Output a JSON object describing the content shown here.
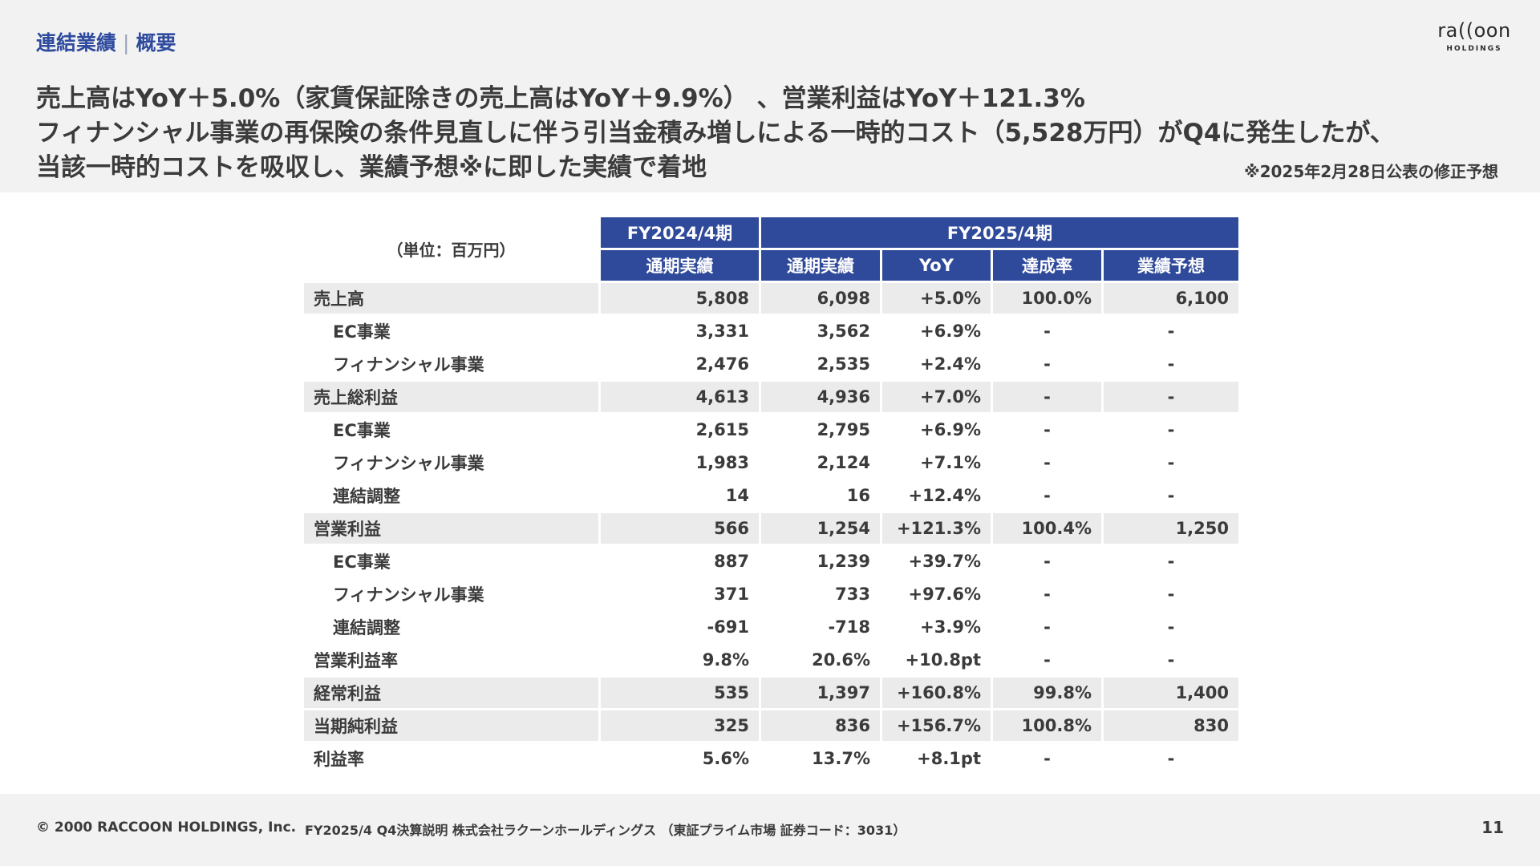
{
  "header": {
    "section": "連結業績",
    "subsection": "概要",
    "logo_word": "ra((oon",
    "logo_sub": "HOLDINGS",
    "headline_lines": [
      "売上高はYoY＋5.0%（家賃保証除きの売上高はYoY＋9.9%） 、営業利益はYoY＋121.3%",
      "フィナンシャル事業の再保険の条件見直しに伴う引当金積み増しによる一時的コスト（5,528万円）がQ4に発生したが、",
      "当該一時的コストを吸収し、業績予想※に即した実績で着地"
    ],
    "note": "※2025年2月28日公表の修正予想"
  },
  "table": {
    "unit_label": "（単位：百万円）",
    "period_headers": [
      "FY2024/4期",
      "FY2025/4期"
    ],
    "column_headers": [
      "通期実績",
      "通期実績",
      "YoY",
      "達成率",
      "業績予想"
    ],
    "rows": [
      {
        "label": "売上高",
        "values": [
          "5,808",
          "6,098",
          "+5.0%",
          "100.0%",
          "6,100"
        ]
      },
      {
        "label": "EC事業",
        "values": [
          "3,331",
          "3,562",
          "+6.9%",
          "-",
          "-"
        ]
      },
      {
        "label": "フィナンシャル事業",
        "values": [
          "2,476",
          "2,535",
          "+2.4%",
          "-",
          "-"
        ]
      },
      {
        "label": "売上総利益",
        "values": [
          "4,613",
          "4,936",
          "+7.0%",
          "-",
          "-"
        ]
      },
      {
        "label": "EC事業",
        "values": [
          "2,615",
          "2,795",
          "+6.9%",
          "-",
          "-"
        ]
      },
      {
        "label": "フィナンシャル事業",
        "values": [
          "1,983",
          "2,124",
          "+7.1%",
          "-",
          "-"
        ]
      },
      {
        "label": "連結調整",
        "values": [
          "14",
          "16",
          "+12.4%",
          "-",
          "-"
        ]
      },
      {
        "label": "営業利益",
        "values": [
          "566",
          "1,254",
          "+121.3%",
          "100.4%",
          "1,250"
        ]
      },
      {
        "label": "EC事業",
        "values": [
          "887",
          "1,239",
          "+39.7%",
          "-",
          "-"
        ]
      },
      {
        "label": "フィナンシャル事業",
        "values": [
          "371",
          "733",
          "+97.6%",
          "-",
          "-"
        ]
      },
      {
        "label": "連結調整",
        "values": [
          "-691",
          "-718",
          "+3.9%",
          "-",
          "-"
        ]
      },
      {
        "label": "営業利益率",
        "values": [
          "9.8%",
          "20.6%",
          "+10.8pt",
          "-",
          "-"
        ]
      },
      {
        "label": "経常利益",
        "values": [
          "535",
          "1,397",
          "+160.8%",
          "99.8%",
          "1,400"
        ]
      },
      {
        "label": "当期純利益",
        "values": [
          "325",
          "836",
          "+156.7%",
          "100.8%",
          "830"
        ]
      },
      {
        "label": "利益率",
        "values": [
          "5.6%",
          "13.7%",
          "+8.1pt",
          "-",
          "-"
        ]
      }
    ]
  },
  "footer": {
    "copyright": "© 2000 RACCOON HOLDINGS, Inc.",
    "document": "FY2025/4 Q4決算説明 株式会社ラクーンホールディングス （東証プライム市場 証券コード：3031）",
    "page": "11"
  },
  "colors": {
    "accent_blue": "#2f4a9a",
    "title_blue": "#2f4b9e",
    "band_gray": "#f2f2f2",
    "row_shade": "#ebebeb"
  }
}
